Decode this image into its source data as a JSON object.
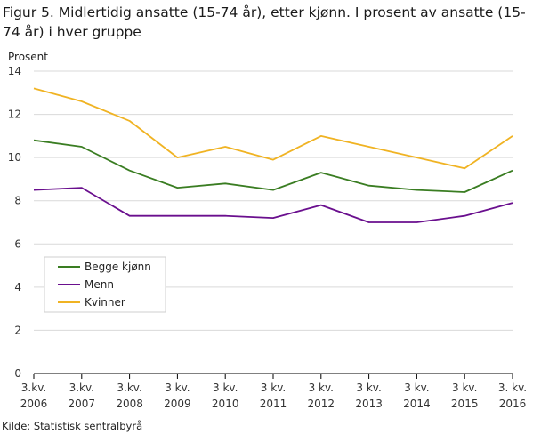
{
  "figure": {
    "title": "Figur 5. Midlertidig ansatte (15-74 år), etter kjønn. I prosent av ansatte (15-74 år) i hver gruppe",
    "source": "Kilde: Statistisk sentralbyrå"
  },
  "chart_data": {
    "type": "line",
    "ylabel": "Prosent",
    "xlabel": "",
    "ylim": [
      0,
      14
    ],
    "yticks": [
      0,
      2,
      4,
      6,
      8,
      10,
      12,
      14
    ],
    "grid": "horizontal",
    "legend_position": "bottom-left inside plot",
    "categories": [
      [
        "3.kv.",
        "2006"
      ],
      [
        "3.kv.",
        "2007"
      ],
      [
        "3.kv.",
        "2008"
      ],
      [
        "3 kv.",
        "2009"
      ],
      [
        "3 kv.",
        "2010"
      ],
      [
        "3 kv.",
        "2011"
      ],
      [
        "3 kv.",
        "2012"
      ],
      [
        "3 kv.",
        "2013"
      ],
      [
        "3 kv.",
        "2014"
      ],
      [
        "3 kv.",
        "2015"
      ],
      [
        "3. kv.",
        "2016"
      ]
    ],
    "series": [
      {
        "name": "Begge kjønn",
        "color": "#3a7d22",
        "values": [
          10.8,
          10.5,
          9.4,
          8.6,
          8.8,
          8.5,
          9.3,
          8.7,
          8.5,
          8.4,
          9.4
        ]
      },
      {
        "name": "Menn",
        "color": "#6a0f8e",
        "values": [
          8.5,
          8.6,
          7.3,
          7.3,
          7.3,
          7.2,
          7.8,
          7.0,
          7.0,
          7.3,
          7.9
        ]
      },
      {
        "name": "Kvinner",
        "color": "#f0b323",
        "values": [
          13.2,
          12.6,
          11.7,
          10.0,
          10.5,
          9.9,
          11.0,
          10.5,
          10.0,
          9.5,
          11.0
        ]
      }
    ]
  }
}
